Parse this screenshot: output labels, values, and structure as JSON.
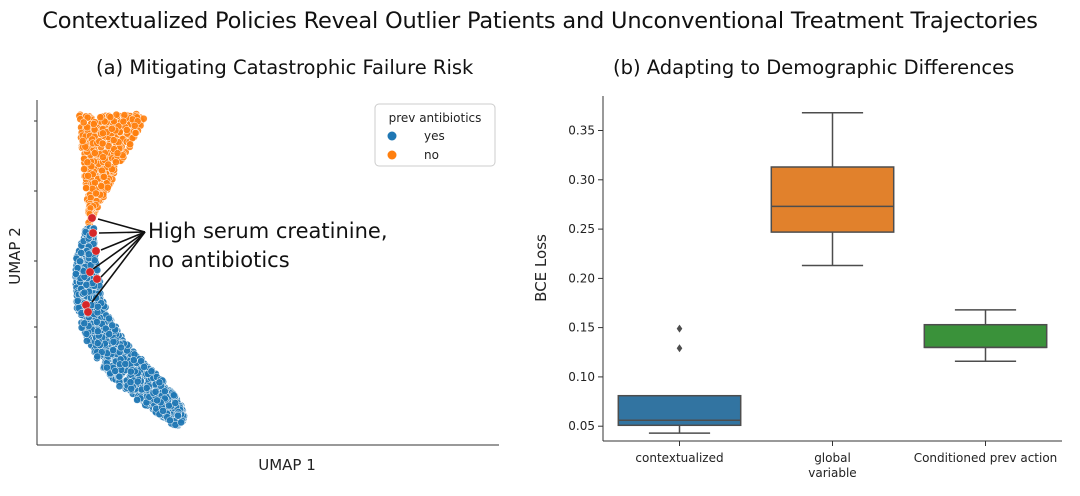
{
  "title": "Contextualized Policies Reveal Outlier Patients and Unconventional Treatment Trajectories",
  "chart_data": [
    {
      "type": "scatter",
      "title": "(a) Mitigating Catastrophic Failure Risk",
      "xlabel": "UMAP 1",
      "ylabel": "UMAP 2",
      "ticks_labeled": false,
      "legend": {
        "title": "prev antibiotics",
        "position": "top-right",
        "entries": [
          {
            "label": "yes",
            "color": "#1f77b4"
          },
          {
            "label": "no",
            "color": "#ff7f0e"
          }
        ]
      },
      "clusters": [
        {
          "name": "yes",
          "color": "#1f77b4",
          "description": "elongated cluster from upper-left curving to lower-right"
        },
        {
          "name": "no",
          "color": "#ff7f0e",
          "description": "compact cluster at top-left"
        }
      ],
      "highlight": {
        "color": "#d62728",
        "count": 7,
        "annotation": "High serum creatinine,\nno antibiotics",
        "annotation_lines": [
          "High serum creatinine,",
          "no antibiotics"
        ]
      }
    },
    {
      "type": "box",
      "title": "(b) Adapting to Demographic Differences",
      "xlabel": "",
      "ylabel": "BCE Loss",
      "ylim": [
        0.035,
        0.385
      ],
      "yticks": [
        "0.05",
        "0.10",
        "0.15",
        "0.20",
        "0.25",
        "0.30",
        "0.35"
      ],
      "categories": [
        "contextualized",
        "global\nvariable",
        "Conditioned prev action"
      ],
      "category_lines": [
        [
          "contextualized"
        ],
        [
          "global",
          "variable"
        ],
        [
          "Conditioned prev action"
        ]
      ],
      "boxes": [
        {
          "category": "contextualized",
          "color": "#3274a1",
          "whisker_low": 0.043,
          "q1": 0.051,
          "median": 0.056,
          "q3": 0.081,
          "whisker_high": 0.081,
          "outliers": [
            0.129,
            0.149
          ]
        },
        {
          "category": "global variable",
          "color": "#e1812c",
          "whisker_low": 0.213,
          "q1": 0.247,
          "median": 0.273,
          "q3": 0.313,
          "whisker_high": 0.368,
          "outliers": []
        },
        {
          "category": "Conditioned prev action",
          "color": "#3a923a",
          "whisker_low": 0.116,
          "q1": 0.13,
          "median": 0.13,
          "q3": 0.153,
          "whisker_high": 0.168,
          "outliers": []
        }
      ]
    }
  ]
}
